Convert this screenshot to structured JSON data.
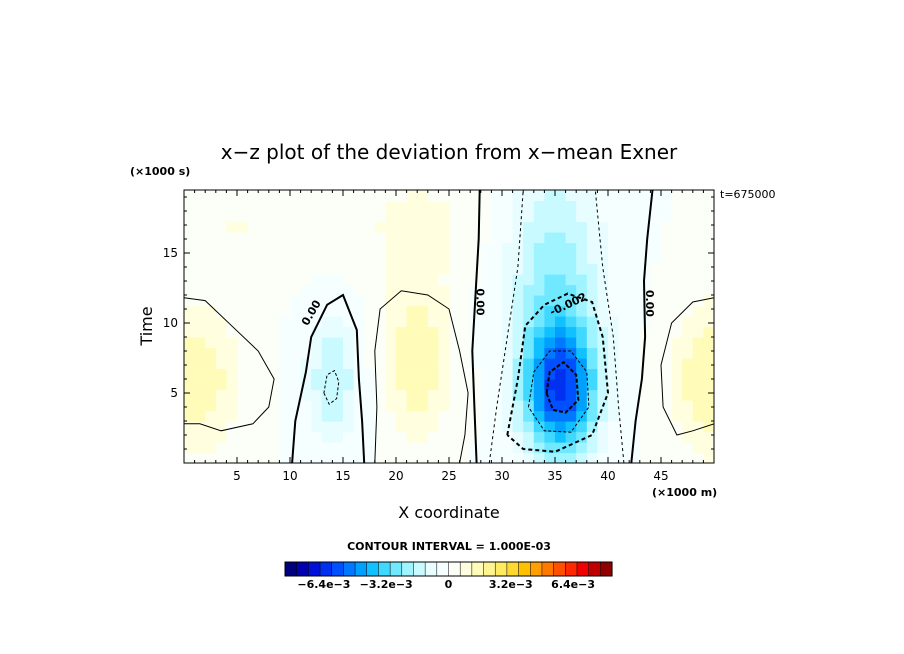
{
  "chart_data": {
    "type": "heatmap",
    "title": "x−z plot of the deviation from x−mean Exner",
    "xlabel": "X coordinate",
    "ylabel": "Time",
    "x_unit": "(×1000 m)",
    "y_unit": "(×1000 s)",
    "time_stamp": "t=675000",
    "xlim": [
      0,
      50
    ],
    "ylim": [
      0,
      19.5
    ],
    "xticks": [
      5,
      10,
      15,
      20,
      25,
      30,
      35,
      40,
      45
    ],
    "yticks": [
      5,
      10,
      15
    ],
    "contour_interval_text": "CONTOUR INTERVAL = 1.000E-03",
    "contour_labels": [
      {
        "text": "0.00",
        "x": 12.3,
        "y": 10.6,
        "angle": -60
      },
      {
        "text": "0.00",
        "x": 27.6,
        "y": 11.5,
        "angle": 90
      },
      {
        "text": "-0.002",
        "x": 36.4,
        "y": 11.1,
        "angle": -25
      },
      {
        "text": "0.00",
        "x": 43.6,
        "y": 11.4,
        "angle": 90
      }
    ],
    "field_features": [
      {
        "x": 2,
        "y": 6,
        "value": 0.0018
      },
      {
        "x": 14,
        "y": 6,
        "value": -0.0018
      },
      {
        "x": 22,
        "y": 7.5,
        "value": 0.0018
      },
      {
        "x": 35.5,
        "y": 5.2,
        "value": -0.0058
      },
      {
        "x": 49,
        "y": 6,
        "value": 0.0018
      }
    ],
    "colorbar": {
      "min": -0.0084,
      "max": 0.0084,
      "step": 0.0004,
      "tick_labels": [
        "−6.4e−3",
        "−3.2e−3",
        "0",
        "3.2e−3",
        "6.4e−3"
      ],
      "tick_values": [
        -0.0064,
        -0.0032,
        0,
        0.0032,
        0.0064
      ],
      "colors": [
        "#00007f",
        "#0000b0",
        "#0010d8",
        "#0030f0",
        "#0050ff",
        "#0078ff",
        "#00a0ff",
        "#10c0ff",
        "#40d8ff",
        "#70e8ff",
        "#a0f4ff",
        "#c8faff",
        "#e8fdff",
        "#f6ffff",
        "#fcfff8",
        "#ffffe0",
        "#fffbb8",
        "#fff490",
        "#ffeb60",
        "#ffd830",
        "#ffc000",
        "#ffa000",
        "#ff7800",
        "#ff5000",
        "#ff2800",
        "#f00000",
        "#c00000",
        "#900000"
      ]
    }
  }
}
